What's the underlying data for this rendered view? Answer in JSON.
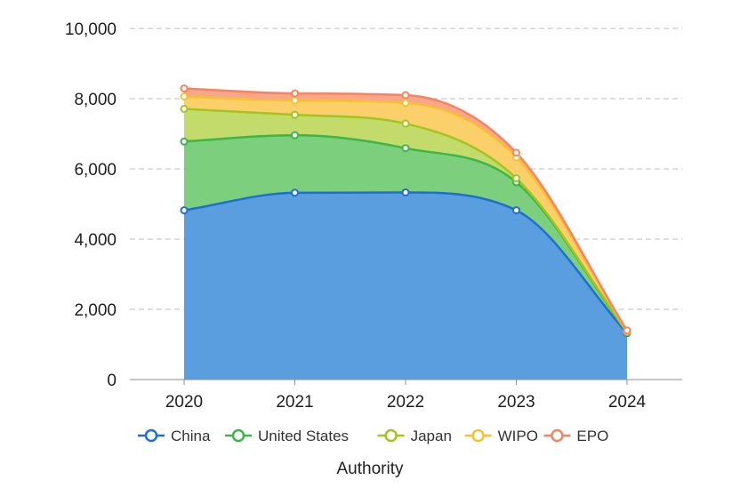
{
  "chart_data": {
    "type": "area",
    "stacked": true,
    "categories": [
      "2020",
      "2021",
      "2022",
      "2023",
      "2024"
    ],
    "series": [
      {
        "name": "China",
        "color": "#1f6fd1",
        "fill": "#5b9ee0",
        "values": [
          4820,
          5320,
          5330,
          4820,
          1320
        ]
      },
      {
        "name": "United States",
        "color": "#3cb54a",
        "fill": "#7ccf7d",
        "values": [
          1960,
          1640,
          1260,
          800,
          20
        ]
      },
      {
        "name": "Japan",
        "color": "#a2c521",
        "fill": "#c3db6b",
        "values": [
          930,
          580,
          700,
          110,
          20
        ]
      },
      {
        "name": "WIPO",
        "color": "#f7c033",
        "fill": "#fbcf6a",
        "values": [
          350,
          410,
          590,
          600,
          20
        ]
      },
      {
        "name": "EPO",
        "color": "#f68462",
        "fill": "#f8a78a",
        "values": [
          230,
          200,
          220,
          130,
          20
        ]
      }
    ],
    "y_ticks": [
      "0",
      "2,000",
      "4,000",
      "6,000",
      "8,000",
      "10,000"
    ],
    "ylim": [
      0,
      10000
    ],
    "xlabel": "Authority",
    "ylabel": "",
    "title": "",
    "grid": "horizontal-dashed",
    "legend_position": "bottom"
  }
}
